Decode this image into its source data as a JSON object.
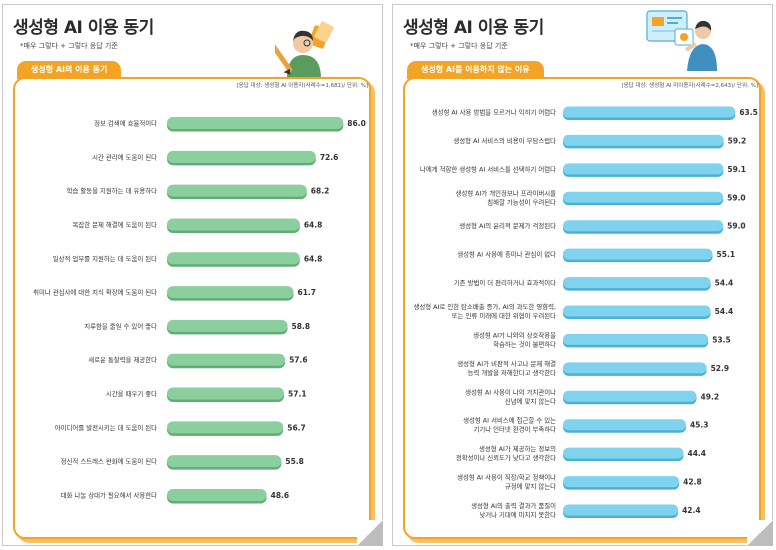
{
  "left": {
    "title": "생성형 AI 이용 동기",
    "note": "*매우 그렇다 + 그렇다 응답 기준",
    "tab": "생성형 AI의 이용 동기",
    "basis": "[응답 대상: 생성형 AI 이용자(사례수=1,681)/ 단위: %]",
    "bar_color": "#8ccf9e",
    "bar_shadow": "#5fae75"
  },
  "right": {
    "title": "생성형 AI 이용 동기",
    "note": "*매우 그렇다 + 그렇다 응답 기준",
    "tab": "생성형 AI를 이용하지 않는 이유",
    "basis": "[응답 대상: 생성형 AI 미이용자(사례수=2,643)/ 단위: %]",
    "bar_color": "#7fd3ee",
    "bar_shadow": "#4bb0d4"
  },
  "chart_data": [
    {
      "type": "bar",
      "orientation": "horizontal",
      "title": "생성형 AI의 이용 동기",
      "categories": [
        "정보 검색에 효율적이다",
        "시간 관리에 도움이 된다",
        "학습 활동을 지원하는 데 유용하다",
        "복잡한 문제 해결에 도움이 된다",
        "일상적 업무를 지원하는 데 도움이 된다",
        "취미나 관심사에 대한 지식 확장에 도움이 된다",
        "지루함을 줄일 수 있어 좋다",
        "새로운 통찰력을 제공한다",
        "시간을 때우기 좋다",
        "아이디어를 발전시키는 데 도움이 된다",
        "정신적 스트레스 완화에 도움이 된다",
        "대화 나눌 상대가 필요해서 사용한다"
      ],
      "values": [
        86.0,
        72.6,
        68.2,
        64.8,
        64.8,
        61.7,
        58.8,
        57.6,
        57.1,
        56.7,
        55.8,
        48.6
      ],
      "value_labels": [
        "86.0",
        "72.6",
        "68.2",
        "64.8",
        "64.8",
        "61.7",
        "58.8",
        "57.6",
        "57.1",
        "56.7",
        "55.8",
        "48.6"
      ],
      "unit": "%",
      "xlim": [
        0,
        100
      ],
      "grid": false
    },
    {
      "type": "bar",
      "orientation": "horizontal",
      "title": "생성형 AI를 이용하지 않는 이유",
      "categories": [
        [
          "생성형 AI 사용 방법을 모르거나 익히기 어렵다"
        ],
        [
          "생성형 AI 서비스의 비용이 부담스럽다"
        ],
        [
          "나에게 적합한 생성형 AI 서비스를 선택하기 어렵다"
        ],
        [
          "생성형 AI가 개인정보나 프라이버시를",
          "침해할 가능성이 우려된다"
        ],
        [
          "생성형 AI의 윤리적 문제가 걱정된다"
        ],
        [
          "생성형 AI 사용에 흥미나 관심이 없다"
        ],
        [
          "기존 방법이 더 편리하거나 효과적이다"
        ],
        [
          "생성형 AI로 인한 탄소배출 증가, AI의 과도한 영향력,",
          "또는 인류 미래에 대한 위협이 우려된다"
        ],
        [
          "생성형 AI가 나와의 상호작용을",
          "학습하는 것이 불편하다"
        ],
        [
          "생성형 AI가 비판적 사고나 문제 해결",
          "능력 개발을 저해한다고 생각한다"
        ],
        [
          "생성형 AI 사용이 나의 가치관이나",
          "신념에 맞지 않는다"
        ],
        [
          "생성형 AI 서비스에 접근할 수 있는",
          "기기나 인터넷 환경이 부족하다"
        ],
        [
          "생성형 AI가 제공하는 정보의",
          "정확성이나 신뢰도가 낮다고 생각한다"
        ],
        [
          "생성형 AI 사용이 직장/학교 정책이나",
          "규정에 맞지 않는다"
        ],
        [
          "생성형 AI의 출력 결과가 품질이",
          "낮거나 기대에 미치지 못한다"
        ]
      ],
      "values": [
        63.5,
        59.2,
        59.1,
        59.0,
        59.0,
        55.1,
        54.4,
        54.4,
        53.5,
        52.9,
        49.2,
        45.3,
        44.4,
        42.8,
        42.4
      ],
      "value_labels": [
        "63.5",
        "59.2",
        "59.1",
        "59.0",
        "59.0",
        "55.1",
        "54.4",
        "54.4",
        "53.5",
        "52.9",
        "49.2",
        "45.3",
        "44.4",
        "42.8",
        "42.4"
      ],
      "unit": "%",
      "xlim": [
        0,
        70
      ],
      "grid": false
    }
  ]
}
